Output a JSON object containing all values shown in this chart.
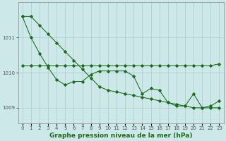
{
  "xlabel": "Graphe pression niveau de la mer (hPa)",
  "bg_color": "#cce8e8",
  "grid_color": "#aacccc",
  "line_color": "#1a6b1a",
  "x": [
    0,
    1,
    2,
    3,
    4,
    5,
    6,
    7,
    8,
    9,
    10,
    11,
    12,
    13,
    14,
    15,
    16,
    17,
    18,
    19,
    20,
    21,
    22,
    23
  ],
  "y_straight": [
    1011.6,
    1011.6,
    1011.35,
    1011.1,
    1010.85,
    1010.6,
    1010.35,
    1010.1,
    1009.85,
    1009.6,
    1009.5,
    1009.45,
    1009.4,
    1009.35,
    1009.3,
    1009.25,
    1009.2,
    1009.15,
    1009.1,
    1009.05,
    1009.0,
    1009.0,
    1009.0,
    1009.0
  ],
  "y_flat": [
    1010.2,
    1010.2,
    1010.2,
    1010.2,
    1010.2,
    1010.2,
    1010.2,
    1010.2,
    1010.2,
    1010.2,
    1010.2,
    1010.2,
    1010.2,
    1010.2,
    1010.2,
    1010.2,
    1010.2,
    1010.2,
    1010.2,
    1010.2,
    1010.2,
    1010.2,
    1010.2,
    1010.25
  ],
  "y_zigzag": [
    1011.6,
    1011.0,
    1010.55,
    1010.15,
    1009.8,
    1009.65,
    1009.75,
    1009.75,
    1009.95,
    1010.05,
    1010.05,
    1010.05,
    1010.05,
    1009.9,
    1009.4,
    1009.55,
    1009.5,
    1009.15,
    1009.05,
    1009.05,
    1009.4,
    1009.0,
    1009.05,
    1009.2
  ],
  "ylim": [
    1008.55,
    1012.0
  ],
  "yticks": [
    1009,
    1010,
    1011
  ],
  "xticks": [
    0,
    1,
    2,
    3,
    4,
    5,
    6,
    7,
    8,
    9,
    10,
    11,
    12,
    13,
    14,
    15,
    16,
    17,
    18,
    19,
    20,
    21,
    22,
    23
  ],
  "tick_fontsize": 5.0,
  "label_fontsize": 6.5
}
